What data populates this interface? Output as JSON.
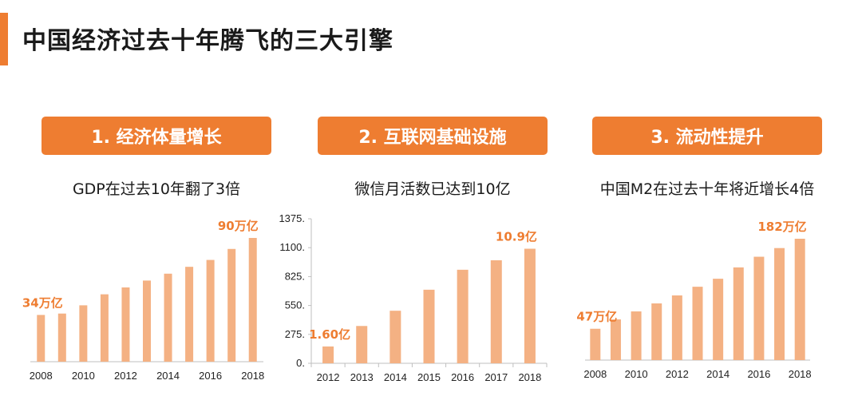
{
  "page": {
    "title": "中国经济过去十年腾飞的三大引擎",
    "accent_color": "#ee7d31",
    "bar_color": "#f4b183"
  },
  "panels": [
    {
      "header": "1. 经济体量增长",
      "subtitle": "GDP在过去10年翻了3倍"
    },
    {
      "header": "2. 互联网基础设施",
      "subtitle": "微信月活数已达到10亿"
    },
    {
      "header": "3. 流动性提升",
      "subtitle": "中国M2在过去十年将近增长4倍"
    }
  ],
  "chart_data": [
    {
      "type": "bar",
      "title": "GDP在过去10年翻了3倍",
      "categories": [
        "2008",
        "2009",
        "2010",
        "2011",
        "2012",
        "2013",
        "2014",
        "2015",
        "2016",
        "2017",
        "2018"
      ],
      "tick_labels": [
        "2008",
        "",
        "2010",
        "",
        "2012",
        "",
        "2014",
        "",
        "2016",
        "",
        "2018"
      ],
      "values": [
        34,
        35,
        41,
        49,
        54,
        59,
        64,
        69,
        74,
        82,
        90
      ],
      "ylim": [
        0,
        90
      ],
      "data_labels": [
        {
          "index": 0,
          "text": "34万亿"
        },
        {
          "index": 10,
          "text": "90万亿"
        }
      ],
      "y_axis_visible": false
    },
    {
      "type": "bar",
      "title": "微信月活数已达到10亿",
      "categories": [
        "2012",
        "2013",
        "2014",
        "2015",
        "2016",
        "2017",
        "2018"
      ],
      "tick_labels": [
        "2012",
        "2013",
        "2014",
        "2015",
        "2016",
        "2017",
        "2018"
      ],
      "values": [
        160,
        355,
        500,
        700,
        890,
        980,
        1090
      ],
      "ylim": [
        0,
        1375
      ],
      "yticks": [
        0,
        275,
        550,
        825,
        1100,
        1375
      ],
      "ytick_labels": [
        "0.",
        "275.",
        "550.",
        "825.",
        "1100.",
        "1375."
      ],
      "data_labels": [
        {
          "index": 0,
          "text": "1.60亿"
        },
        {
          "index": 6,
          "text": "10.9亿"
        }
      ],
      "y_axis_visible": true
    },
    {
      "type": "bar",
      "title": "中国M2在过去十年将近增长4倍",
      "categories": [
        "2008",
        "2009",
        "2010",
        "2011",
        "2012",
        "2013",
        "2014",
        "2015",
        "2016",
        "2017",
        "2018"
      ],
      "tick_labels": [
        "2008",
        "",
        "2010",
        "",
        "2012",
        "",
        "2014",
        "",
        "2016",
        "",
        "2018"
      ],
      "values": [
        47,
        61,
        73,
        85,
        97,
        110,
        122,
        139,
        155,
        168,
        182
      ],
      "ylim": [
        0,
        182
      ],
      "data_labels": [
        {
          "index": 0,
          "text": "47万亿"
        },
        {
          "index": 10,
          "text": "182万亿"
        }
      ],
      "y_axis_visible": false
    }
  ]
}
